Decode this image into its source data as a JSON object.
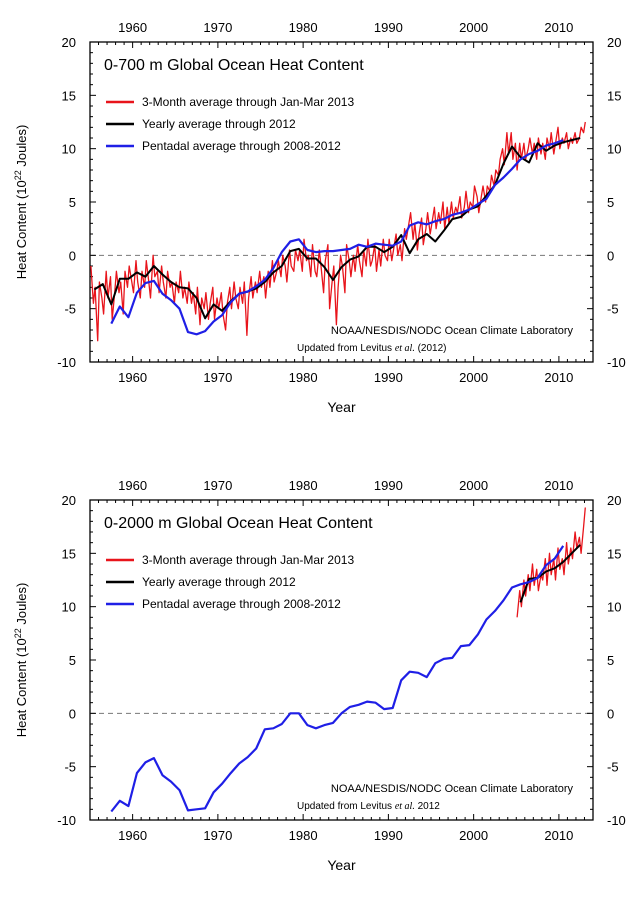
{
  "colors": {
    "monthly": "#e8141b",
    "yearly": "#000000",
    "pentadal": "#1f1fe6",
    "zero_line": "#777777"
  },
  "chart_data": [
    {
      "type": "line",
      "title": "0-700 m Global Ocean Heat Content",
      "xlabel": "Year",
      "ylabel": "Heat Content (10",
      "ylabel_exp": "22",
      "ylabel_unit": " Joules)",
      "xlim": [
        1955,
        2014
      ],
      "ylim": [
        -10,
        20
      ],
      "x_ticks": [
        "1960",
        "1970",
        "1980",
        "1990",
        "2000",
        "2010"
      ],
      "y_ticks": [
        "-10",
        "-5",
        "0",
        "5",
        "10",
        "15",
        "20"
      ],
      "legend": [
        "3-Month average through Jan-Mar 2013",
        "Yearly average through 2012",
        "Pentadal average through 2008-2012"
      ],
      "legend_position": "top-left",
      "credit_line1": "NOAA/NESDIS/NODC Ocean Climate Laboratory",
      "credit_line2_pre": "Updated from Levitus ",
      "credit_line2_em": "et al.",
      "credit_line2_post": " (2012)",
      "grid": false,
      "series": [
        {
          "name": "3-Month average through Jan-Mar 2013",
          "x": [
            1955.1,
            1955.4,
            1955.6,
            1955.9,
            1956.1,
            1956.4,
            1956.6,
            1956.9,
            1957.1,
            1957.4,
            1957.6,
            1957.9,
            1958.1,
            1958.4,
            1958.6,
            1958.9,
            1959.1,
            1959.4,
            1959.6,
            1959.9,
            1960.1,
            1960.4,
            1960.6,
            1960.9,
            1961.1,
            1961.4,
            1961.6,
            1961.9,
            1962.1,
            1962.4,
            1962.6,
            1962.9,
            1963.1,
            1963.4,
            1963.6,
            1963.9,
            1964.1,
            1964.4,
            1964.6,
            1964.9,
            1965.1,
            1965.4,
            1965.6,
            1965.9,
            1966.1,
            1966.4,
            1966.6,
            1966.9,
            1967.1,
            1967.4,
            1967.6,
            1967.9,
            1968.1,
            1968.4,
            1968.6,
            1968.9,
            1969.1,
            1969.4,
            1969.6,
            1969.9,
            1970.1,
            1970.4,
            1970.6,
            1970.9,
            1971.1,
            1971.4,
            1971.6,
            1971.9,
            1972.1,
            1972.4,
            1972.6,
            1972.9,
            1973.1,
            1973.4,
            1973.6,
            1973.9,
            1974.1,
            1974.4,
            1974.6,
            1974.9,
            1975.1,
            1975.4,
            1975.6,
            1975.9,
            1976.1,
            1976.4,
            1976.6,
            1976.9,
            1977.1,
            1977.4,
            1977.6,
            1977.9,
            1978.1,
            1978.4,
            1978.6,
            1978.9,
            1979.1,
            1979.4,
            1979.6,
            1979.9,
            1980.1,
            1980.4,
            1980.6,
            1980.9,
            1981.1,
            1981.4,
            1981.6,
            1981.9,
            1982.1,
            1982.4,
            1982.6,
            1982.9,
            1983.1,
            1983.4,
            1983.6,
            1983.9,
            1984.1,
            1984.4,
            1984.6,
            1984.9,
            1985.1,
            1985.4,
            1985.6,
            1985.9,
            1986.1,
            1986.4,
            1986.6,
            1986.9,
            1987.1,
            1987.4,
            1987.6,
            1987.9,
            1988.1,
            1988.4,
            1988.6,
            1988.9,
            1989.1,
            1989.4,
            1989.6,
            1989.9,
            1990.1,
            1990.4,
            1990.6,
            1990.9,
            1991.1,
            1991.4,
            1991.6,
            1991.9,
            1992.1,
            1992.4,
            1992.6,
            1992.9,
            1993.1,
            1993.4,
            1993.6,
            1993.9,
            1994.1,
            1994.4,
            1994.6,
            1994.9,
            1995.1,
            1995.4,
            1995.6,
            1995.9,
            1996.1,
            1996.4,
            1996.6,
            1996.9,
            1997.1,
            1997.4,
            1997.6,
            1997.9,
            1998.1,
            1998.4,
            1998.6,
            1998.9,
            1999.1,
            1999.4,
            1999.6,
            1999.9,
            2000.1,
            2000.4,
            2000.6,
            2000.9,
            2001.1,
            2001.4,
            2001.6,
            2001.9,
            2002.1,
            2002.4,
            2002.6,
            2002.9,
            2003.1,
            2003.4,
            2003.6,
            2003.9,
            2004.1,
            2004.4,
            2004.6,
            2004.9,
            2005.1,
            2005.4,
            2005.6,
            2005.9,
            2006.1,
            2006.4,
            2006.6,
            2006.9,
            2007.1,
            2007.4,
            2007.6,
            2007.9,
            2008.1,
            2008.4,
            2008.6,
            2008.9,
            2009.1,
            2009.4,
            2009.6,
            2009.9,
            2010.1,
            2010.4,
            2010.6,
            2010.9,
            2011.1,
            2011.4,
            2011.6,
            2011.9,
            2012.1,
            2012.4,
            2012.6,
            2012.9,
            2013.1
          ],
          "y": [
            -1.0,
            -4.5,
            -3.0,
            -8.0,
            -2.5,
            -4.0,
            -5.5,
            -1.5,
            -4.0,
            -2.0,
            -6.0,
            -3.5,
            -1.5,
            -3.5,
            -2.5,
            -5.5,
            -1.5,
            -3.0,
            -1.0,
            -2.5,
            -3.5,
            -0.5,
            -2.5,
            -4.0,
            -1.5,
            -3.0,
            -0.5,
            -2.5,
            -4.0,
            0.0,
            -2.0,
            -1.5,
            -3.5,
            -1.0,
            -2.5,
            -4.0,
            -1.5,
            -3.0,
            -2.5,
            -4.5,
            -2.5,
            -3.5,
            -1.5,
            -4.0,
            -3.0,
            -4.5,
            -2.5,
            -4.5,
            -3.5,
            -5.5,
            -3.0,
            -6.5,
            -4.0,
            -5.0,
            -3.5,
            -6.0,
            -4.5,
            -3.0,
            -6.0,
            -4.0,
            -5.0,
            -3.5,
            -5.5,
            -7.0,
            -4.5,
            -3.0,
            -5.0,
            -2.5,
            -4.0,
            -5.0,
            -3.0,
            -4.5,
            -2.5,
            -7.5,
            -4.0,
            -2.0,
            -4.0,
            -2.5,
            -3.5,
            -1.5,
            -3.0,
            -2.0,
            -4.0,
            -1.5,
            -3.0,
            -0.5,
            -2.5,
            -1.5,
            -0.5,
            -2.0,
            0.0,
            -1.0,
            -2.5,
            0.5,
            -1.0,
            -1.5,
            0.5,
            -0.5,
            0.5,
            -1.5,
            1.5,
            -0.5,
            0.0,
            -2.0,
            1.0,
            -1.5,
            -2.0,
            0.5,
            -1.0,
            -3.5,
            -0.5,
            1.0,
            -5.0,
            -2.5,
            -1.0,
            -6.5,
            -3.0,
            0.0,
            -1.0,
            -3.5,
            1.0,
            -0.5,
            -2.0,
            0.0,
            -1.5,
            1.0,
            -0.5,
            -2.0,
            0.5,
            -1.0,
            1.5,
            -1.0,
            -0.5,
            1.0,
            -1.5,
            0.5,
            -1.0,
            1.5,
            0.0,
            -0.5,
            1.5,
            -0.5,
            0.5,
            2.0,
            0.0,
            1.0,
            -0.5,
            2.5,
            1.5,
            3.0,
            4.0,
            1.5,
            3.0,
            0.5,
            2.0,
            3.5,
            1.0,
            2.5,
            4.0,
            2.0,
            3.0,
            4.5,
            2.5,
            4.0,
            3.0,
            5.0,
            2.5,
            4.5,
            3.0,
            5.0,
            3.5,
            4.5,
            4.0,
            5.5,
            3.5,
            4.5,
            6.0,
            4.0,
            5.0,
            4.5,
            6.5,
            5.5,
            4.0,
            5.5,
            6.5,
            5.0,
            6.5,
            6.0,
            7.5,
            6.5,
            8.0,
            7.5,
            9.0,
            10.0,
            8.5,
            11.5,
            9.5,
            11.5,
            9.0,
            10.5,
            8.0,
            10.5,
            9.0,
            10.5,
            9.0,
            10.0,
            11.0,
            9.5,
            10.5,
            9.0,
            11.0,
            9.5,
            10.5,
            9.0,
            11.0,
            10.0,
            11.5,
            9.5,
            10.5,
            12.0,
            10.0,
            11.0,
            10.5,
            11.5,
            10.0,
            11.0,
            10.5,
            11.5,
            10.5,
            11.0,
            12.0,
            11.5,
            12.5
          ]
        },
        {
          "name": "Yearly average through 2012",
          "x": [
            1955.5,
            1956.5,
            1957.5,
            1958.5,
            1959.5,
            1960.5,
            1961.5,
            1962.5,
            1963.5,
            1964.5,
            1965.5,
            1966.5,
            1967.5,
            1968.5,
            1969.5,
            1970.5,
            1971.5,
            1972.5,
            1973.5,
            1974.5,
            1975.5,
            1976.5,
            1977.5,
            1978.5,
            1979.5,
            1980.5,
            1981.5,
            1982.5,
            1983.5,
            1984.5,
            1985.5,
            1986.5,
            1987.5,
            1988.5,
            1989.5,
            1990.5,
            1991.5,
            1992.5,
            1993.5,
            1994.5,
            1995.5,
            1996.5,
            1997.5,
            1998.5,
            1999.5,
            2000.5,
            2001.5,
            2002.5,
            2003.5,
            2004.5,
            2005.5,
            2006.5,
            2007.5,
            2008.5,
            2009.5,
            2010.5,
            2011.5,
            2012.5
          ],
          "y": [
            -3.2,
            -2.7,
            -4.6,
            -2.2,
            -2.2,
            -1.6,
            -2.0,
            -1.0,
            -1.8,
            -2.5,
            -3.0,
            -3.1,
            -4.0,
            -5.9,
            -4.6,
            -5.2,
            -4.3,
            -3.6,
            -3.4,
            -3.1,
            -2.5,
            -1.6,
            -1.0,
            0.4,
            0.6,
            -0.3,
            -0.3,
            -1.1,
            -2.3,
            -1.1,
            -0.4,
            -0.1,
            0.8,
            0.8,
            0.3,
            0.8,
            1.9,
            0.2,
            1.5,
            2.0,
            1.3,
            2.3,
            3.4,
            3.6,
            4.3,
            4.6,
            5.6,
            6.6,
            8.6,
            10.2,
            9.2,
            8.7,
            10.5,
            9.8,
            10.3,
            10.6,
            10.8,
            11.0
          ]
        },
        {
          "name": "Pentadal average through 2008-2012",
          "x": [
            1957.5,
            1958.5,
            1959.5,
            1960.5,
            1961.5,
            1962.5,
            1963.5,
            1964.5,
            1965.5,
            1966.5,
            1967.5,
            1968.5,
            1969.5,
            1970.5,
            1971.5,
            1972.5,
            1973.5,
            1974.5,
            1975.5,
            1976.5,
            1977.5,
            1978.5,
            1979.5,
            1980.5,
            1981.5,
            1982.5,
            1983.5,
            1984.5,
            1985.5,
            1986.5,
            1987.5,
            1988.5,
            1989.5,
            1990.5,
            1991.5,
            1992.5,
            1993.5,
            1994.5,
            1995.5,
            1996.5,
            1997.5,
            1998.5,
            1999.5,
            2000.5,
            2001.5,
            2002.5,
            2003.5,
            2004.5,
            2005.5,
            2006.5,
            2007.5,
            2008.5,
            2009.5,
            2010.5
          ],
          "y": [
            -6.4,
            -4.8,
            -5.8,
            -3.5,
            -2.6,
            -2.4,
            -3.6,
            -4.2,
            -5.0,
            -7.2,
            -7.4,
            -7.1,
            -6.2,
            -5.6,
            -4.4,
            -3.6,
            -3.4,
            -2.9,
            -2.3,
            -1.2,
            0.3,
            1.3,
            1.5,
            0.5,
            0.3,
            0.4,
            0.4,
            0.5,
            0.6,
            1.0,
            0.8,
            1.1,
            1.0,
            0.9,
            1.3,
            2.8,
            3.1,
            2.9,
            3.2,
            3.4,
            3.8,
            4.0,
            4.3,
            4.8,
            5.3,
            6.6,
            7.3,
            8.1,
            9.0,
            9.5,
            9.8,
            10.3,
            10.5,
            10.8
          ]
        }
      ]
    },
    {
      "type": "line",
      "title": "0-2000 m Global Ocean Heat Content",
      "xlabel": "Year",
      "ylabel": "Heat Content (10",
      "ylabel_exp": "22",
      "ylabel_unit": " Joules)",
      "xlim": [
        1955,
        2014
      ],
      "ylim": [
        -10,
        20
      ],
      "x_ticks": [
        "1960",
        "1970",
        "1980",
        "1990",
        "2000",
        "2010"
      ],
      "y_ticks": [
        "-10",
        "-5",
        "0",
        "5",
        "10",
        "15",
        "20"
      ],
      "legend": [
        "3-Month average through Jan-Mar 2013",
        "Yearly average through 2012",
        "Pentadal average through 2008-2012"
      ],
      "legend_position": "top-left",
      "credit_line1": "NOAA/NESDIS/NODC Ocean Climate Laboratory",
      "credit_line2_pre": "Updated from Levitus ",
      "credit_line2_em": "et al.",
      "credit_line2_post": " 2012",
      "grid": false,
      "series": [
        {
          "name": "3-Month average through Jan-Mar 2013",
          "x": [
            2005.1,
            2005.4,
            2005.6,
            2005.9,
            2006.1,
            2006.4,
            2006.6,
            2006.9,
            2007.1,
            2007.4,
            2007.6,
            2007.9,
            2008.1,
            2008.4,
            2008.6,
            2008.9,
            2009.1,
            2009.4,
            2009.6,
            2009.9,
            2010.1,
            2010.4,
            2010.6,
            2010.9,
            2011.1,
            2011.4,
            2011.6,
            2011.9,
            2012.1,
            2012.4,
            2012.6,
            2012.9,
            2013.1
          ],
          "y": [
            9.0,
            11.5,
            10.0,
            12.5,
            11.0,
            13.0,
            11.5,
            14.0,
            12.0,
            13.5,
            11.5,
            13.0,
            12.5,
            14.5,
            12.0,
            15.0,
            13.0,
            14.5,
            12.5,
            15.5,
            13.5,
            14.5,
            13.0,
            16.0,
            14.0,
            15.5,
            14.5,
            17.0,
            15.5,
            16.5,
            15.0,
            17.5,
            19.3
          ]
        },
        {
          "name": "Yearly average through 2012",
          "x": [
            2005.5,
            2006.5,
            2007.5,
            2008.5,
            2009.5,
            2010.5,
            2011.5,
            2012.5
          ],
          "y": [
            10.4,
            12.6,
            12.7,
            13.3,
            13.6,
            14.2,
            15.0,
            15.8
          ]
        },
        {
          "name": "Pentadal average through 2008-2012",
          "x": [
            1957.5,
            1958.5,
            1959.5,
            1960.5,
            1961.5,
            1962.5,
            1963.5,
            1964.5,
            1965.5,
            1966.5,
            1967.5,
            1968.5,
            1969.5,
            1970.5,
            1971.5,
            1972.5,
            1973.5,
            1974.5,
            1975.5,
            1976.5,
            1977.5,
            1978.5,
            1979.5,
            1980.5,
            1981.5,
            1982.5,
            1983.5,
            1984.5,
            1985.5,
            1986.5,
            1987.5,
            1988.5,
            1989.5,
            1990.5,
            1991.5,
            1992.5,
            1993.5,
            1994.5,
            1995.5,
            1996.5,
            1997.5,
            1998.5,
            1999.5,
            2000.5,
            2001.5,
            2002.5,
            2003.5,
            2004.5,
            2005.5,
            2006.5,
            2007.5,
            2008.5,
            2009.5,
            2010.5
          ],
          "y": [
            -9.2,
            -8.2,
            -8.7,
            -5.6,
            -4.6,
            -4.2,
            -5.8,
            -6.4,
            -7.2,
            -9.1,
            -9.0,
            -8.9,
            -7.4,
            -6.6,
            -5.6,
            -4.7,
            -4.1,
            -3.3,
            -1.5,
            -1.4,
            -1.0,
            0.0,
            0.0,
            -1.1,
            -1.4,
            -1.1,
            -0.9,
            0.0,
            0.6,
            0.8,
            1.1,
            1.0,
            0.4,
            0.5,
            3.1,
            3.9,
            3.8,
            3.4,
            4.7,
            5.1,
            5.2,
            6.3,
            6.4,
            7.4,
            8.8,
            9.6,
            10.6,
            11.8,
            12.1,
            12.3,
            12.7,
            13.9,
            14.5,
            15.7
          ]
        }
      ]
    }
  ]
}
